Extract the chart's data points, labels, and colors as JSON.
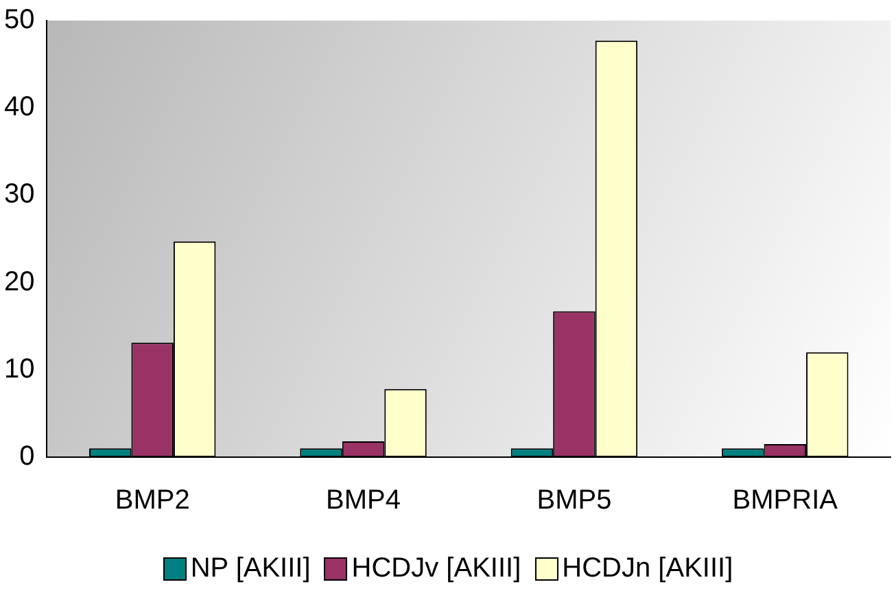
{
  "chart_data": {
    "type": "bar",
    "categories": [
      "BMP2",
      "BMP4",
      "BMP5",
      "BMPRIA"
    ],
    "series": [
      {
        "name": "NP [AKIII]",
        "color": "#008080",
        "values": [
          1,
          1,
          1,
          1
        ]
      },
      {
        "name": "HCDJv [AKIII]",
        "color": "#993366",
        "values": [
          13.1,
          1.8,
          16.7,
          1.5
        ]
      },
      {
        "name": "HCDJn [AKIII]",
        "color": "#ffffcc",
        "values": [
          24.7,
          7.8,
          47.7,
          12
        ]
      }
    ],
    "ylim": [
      0,
      50
    ],
    "yticks": [
      0,
      10,
      20,
      30,
      40,
      50
    ],
    "grid": false,
    "legend": "bottom"
  }
}
